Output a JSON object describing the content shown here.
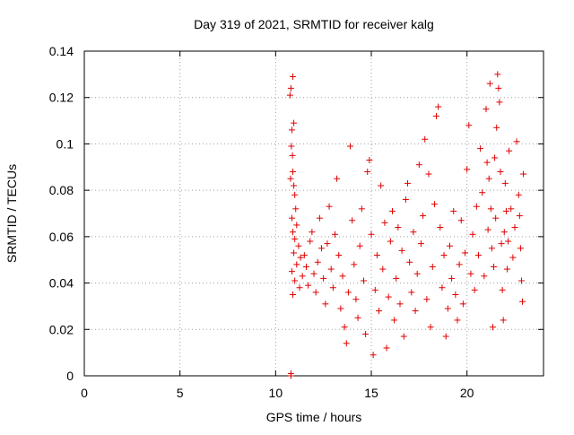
{
  "chart_data": {
    "type": "scatter",
    "title": "Day 319 of 2021, SRMTID for receiver kalg",
    "xlabel": "GPS time / hours",
    "ylabel": "SRMTID / TECUs",
    "xlim": [
      0,
      24
    ],
    "ylim": [
      0,
      0.14
    ],
    "x_ticks": [
      0,
      5,
      10,
      15,
      20
    ],
    "x_tick_labels": [
      "0",
      "5",
      "10",
      "15",
      "20"
    ],
    "y_ticks": [
      0,
      0.02,
      0.04,
      0.06,
      0.08,
      0.1,
      0.12,
      0.14
    ],
    "y_tick_labels": [
      "0",
      "0.02",
      "0.04",
      "0.06",
      "0.08",
      "0.1",
      "0.12",
      "0.14"
    ],
    "grid": true,
    "marker": "plus",
    "color": "#e00000",
    "series": [
      {
        "points": [
          [
            10.8,
            0.0
          ],
          [
            10.8,
            0.001
          ],
          [
            10.75,
            0.121
          ],
          [
            10.8,
            0.124
          ],
          [
            10.9,
            0.129
          ],
          [
            10.95,
            0.109
          ],
          [
            10.85,
            0.106
          ],
          [
            10.82,
            0.099
          ],
          [
            10.88,
            0.095
          ],
          [
            10.9,
            0.088
          ],
          [
            10.78,
            0.085
          ],
          [
            10.95,
            0.082
          ],
          [
            11.0,
            0.078
          ],
          [
            11.05,
            0.072
          ],
          [
            10.85,
            0.068
          ],
          [
            11.1,
            0.065
          ],
          [
            10.9,
            0.062
          ],
          [
            11.0,
            0.059
          ],
          [
            11.2,
            0.056
          ],
          [
            10.95,
            0.053
          ],
          [
            11.3,
            0.051
          ],
          [
            11.1,
            0.048
          ],
          [
            10.85,
            0.045
          ],
          [
            11.4,
            0.043
          ],
          [
            11.0,
            0.041
          ],
          [
            11.25,
            0.038
          ],
          [
            10.9,
            0.035
          ],
          [
            11.5,
            0.052
          ],
          [
            11.6,
            0.047
          ],
          [
            11.7,
            0.039
          ],
          [
            11.8,
            0.058
          ],
          [
            11.9,
            0.062
          ],
          [
            12.0,
            0.044
          ],
          [
            12.1,
            0.036
          ],
          [
            12.2,
            0.049
          ],
          [
            12.3,
            0.068
          ],
          [
            12.4,
            0.055
          ],
          [
            12.5,
            0.042
          ],
          [
            12.6,
            0.031
          ],
          [
            12.7,
            0.057
          ],
          [
            12.8,
            0.073
          ],
          [
            12.9,
            0.046
          ],
          [
            13.0,
            0.038
          ],
          [
            13.1,
            0.061
          ],
          [
            13.2,
            0.085
          ],
          [
            13.3,
            0.052
          ],
          [
            13.4,
            0.029
          ],
          [
            13.5,
            0.043
          ],
          [
            13.6,
            0.021
          ],
          [
            13.7,
            0.014
          ],
          [
            13.8,
            0.036
          ],
          [
            13.9,
            0.099
          ],
          [
            14.0,
            0.067
          ],
          [
            14.1,
            0.048
          ],
          [
            14.2,
            0.033
          ],
          [
            14.3,
            0.025
          ],
          [
            14.4,
            0.056
          ],
          [
            14.5,
            0.072
          ],
          [
            14.6,
            0.041
          ],
          [
            14.7,
            0.018
          ],
          [
            14.8,
            0.088
          ],
          [
            14.9,
            0.093
          ],
          [
            15.0,
            0.061
          ],
          [
            15.1,
            0.009
          ],
          [
            15.2,
            0.037
          ],
          [
            15.3,
            0.052
          ],
          [
            15.4,
            0.028
          ],
          [
            15.5,
            0.082
          ],
          [
            15.6,
            0.046
          ],
          [
            15.7,
            0.066
          ],
          [
            15.8,
            0.012
          ],
          [
            15.9,
            0.034
          ],
          [
            16.0,
            0.058
          ],
          [
            16.1,
            0.071
          ],
          [
            16.2,
            0.024
          ],
          [
            16.3,
            0.042
          ],
          [
            16.4,
            0.064
          ],
          [
            16.5,
            0.031
          ],
          [
            16.6,
            0.054
          ],
          [
            16.7,
            0.017
          ],
          [
            16.8,
            0.076
          ],
          [
            16.9,
            0.083
          ],
          [
            17.0,
            0.049
          ],
          [
            17.1,
            0.036
          ],
          [
            17.2,
            0.062
          ],
          [
            17.3,
            0.028
          ],
          [
            17.4,
            0.044
          ],
          [
            17.5,
            0.091
          ],
          [
            17.6,
            0.057
          ],
          [
            17.7,
            0.069
          ],
          [
            17.8,
            0.102
          ],
          [
            17.9,
            0.033
          ],
          [
            18.0,
            0.087
          ],
          [
            18.1,
            0.021
          ],
          [
            18.2,
            0.047
          ],
          [
            18.3,
            0.074
          ],
          [
            18.4,
            0.112
          ],
          [
            18.5,
            0.116
          ],
          [
            18.6,
            0.064
          ],
          [
            18.7,
            0.038
          ],
          [
            18.8,
            0.052
          ],
          [
            18.9,
            0.017
          ],
          [
            19.0,
            0.029
          ],
          [
            19.1,
            0.056
          ],
          [
            19.2,
            0.042
          ],
          [
            19.3,
            0.071
          ],
          [
            19.4,
            0.035
          ],
          [
            19.5,
            0.024
          ],
          [
            19.6,
            0.048
          ],
          [
            19.7,
            0.067
          ],
          [
            19.8,
            0.031
          ],
          [
            19.9,
            0.053
          ],
          [
            20.0,
            0.089
          ],
          [
            20.1,
            0.108
          ],
          [
            20.2,
            0.044
          ],
          [
            20.3,
            0.061
          ],
          [
            20.4,
            0.037
          ],
          [
            20.5,
            0.073
          ],
          [
            20.6,
            0.052
          ],
          [
            20.7,
            0.098
          ],
          [
            20.8,
            0.079
          ],
          [
            20.9,
            0.043
          ],
          [
            21.0,
            0.115
          ],
          [
            21.05,
            0.092
          ],
          [
            21.1,
            0.063
          ],
          [
            21.15,
            0.085
          ],
          [
            21.2,
            0.126
          ],
          [
            21.25,
            0.072
          ],
          [
            21.3,
            0.055
          ],
          [
            21.35,
            0.021
          ],
          [
            21.4,
            0.047
          ],
          [
            21.45,
            0.094
          ],
          [
            21.5,
            0.068
          ],
          [
            21.55,
            0.107
          ],
          [
            21.6,
            0.13
          ],
          [
            21.65,
            0.124
          ],
          [
            21.7,
            0.118
          ],
          [
            21.75,
            0.088
          ],
          [
            21.8,
            0.057
          ],
          [
            21.85,
            0.037
          ],
          [
            21.9,
            0.024
          ],
          [
            21.95,
            0.062
          ],
          [
            22.0,
            0.083
          ],
          [
            22.05,
            0.071
          ],
          [
            22.1,
            0.046
          ],
          [
            22.15,
            0.058
          ],
          [
            22.2,
            0.097
          ],
          [
            22.3,
            0.072
          ],
          [
            22.4,
            0.051
          ],
          [
            22.5,
            0.064
          ],
          [
            22.6,
            0.101
          ],
          [
            22.7,
            0.078
          ],
          [
            22.75,
            0.069
          ],
          [
            22.8,
            0.055
          ],
          [
            22.85,
            0.041
          ],
          [
            22.9,
            0.032
          ],
          [
            22.95,
            0.087
          ]
        ]
      }
    ]
  }
}
